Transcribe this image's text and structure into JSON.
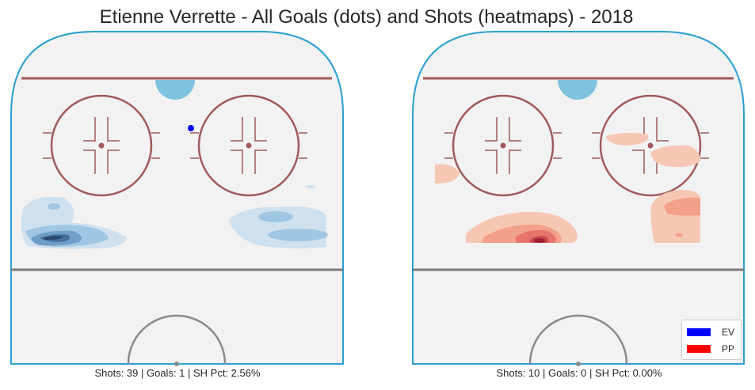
{
  "chart_data": {
    "type": "heatmap",
    "title": "Etienne Verrette - All Goals (dots) and Shots (heatmaps) - 2018",
    "legend": {
      "position": "bottom-right",
      "entries": [
        {
          "label": "EV",
          "color": "#0000ff"
        },
        {
          "label": "PP",
          "color": "#ff0000"
        }
      ]
    },
    "panels": [
      {
        "name": "EV",
        "caption": "Shots: 39 | Goals: 1 | SH Pct: 2.56%",
        "colormap": [
          "#cfe0ef",
          "#9fc7e3",
          "#6f9fc9",
          "#466f9f",
          "#28466f"
        ],
        "goals": [
          {
            "x": 60,
            "y": 50
          }
        ],
        "shot_clusters": [
          {
            "x": 32,
            "y": 8,
            "weight": 4
          },
          {
            "x": 28,
            "y": 14,
            "weight": 2
          },
          {
            "x": 30,
            "y": 80,
            "weight": 2
          },
          {
            "x": 35,
            "y": 74,
            "weight": 1
          },
          {
            "x": 50,
            "y": 72,
            "weight": 1
          }
        ]
      },
      {
        "name": "PP",
        "caption": "Shots: 10 | Goals: 0 | SH Pct: 0.00%",
        "colormap": [
          "#f7c7b5",
          "#f2a089",
          "#e7746a",
          "#c94a4f",
          "#a01f35"
        ],
        "goals": [],
        "shot_clusters": [
          {
            "x": 32,
            "y": 48,
            "weight": 4
          },
          {
            "x": 46,
            "y": 74,
            "weight": 2
          },
          {
            "x": 55,
            "y": 78,
            "weight": 1
          },
          {
            "x": 52,
            "y": 70,
            "weight": 1
          },
          {
            "x": 60,
            "y": 55,
            "weight": 1
          }
        ]
      }
    ]
  }
}
